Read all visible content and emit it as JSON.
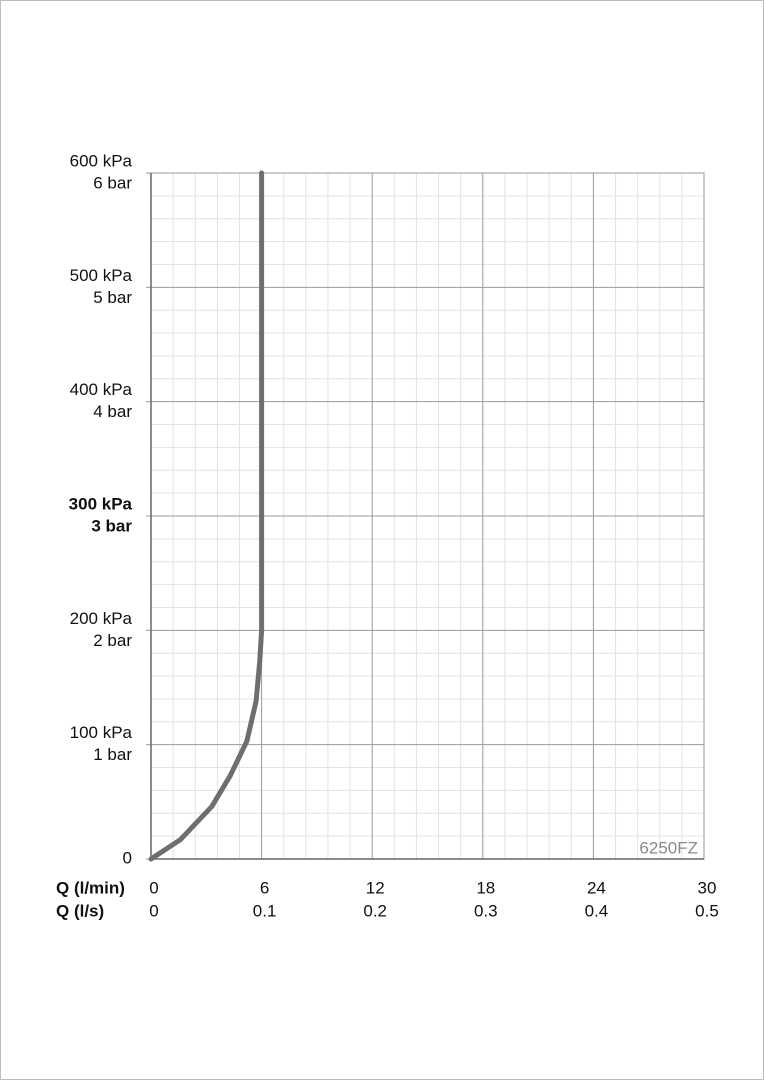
{
  "chart_data": {
    "type": "line",
    "x_label": "Q (l/min)",
    "x2_label": "Q (l/s)",
    "annotation": "6250FZ",
    "xlim": [
      0,
      30
    ],
    "xticks": [
      0,
      6,
      12,
      18,
      24,
      30
    ],
    "x2lim": [
      0,
      0.5
    ],
    "x2ticks": [
      0,
      0.1,
      0.2,
      0.3,
      0.4,
      0.5
    ],
    "ylim": [
      0,
      600
    ],
    "yticks": [
      0,
      {
        "value": 100,
        "label": "100 kPa"
      },
      {
        "value": 200,
        "label": "200 kPa"
      },
      {
        "value": 300,
        "label": "300 kPa"
      },
      {
        "value": 400,
        "label": "400 kPa"
      },
      {
        "value": 500,
        "label": "500 kPa"
      },
      {
        "value": 600,
        "label": "600 kPa"
      }
    ],
    "y2lim": [
      0,
      6
    ],
    "y2ticks": [
      {
        "value": 1,
        "label": "1 bar"
      },
      {
        "value": 2,
        "label": "2 bar"
      },
      {
        "value": 3,
        "label": "3 bar"
      },
      {
        "value": 4,
        "label": "4 bar"
      },
      {
        "value": 5,
        "label": "5 bar"
      },
      {
        "value": 6,
        "label": "6 bar"
      }
    ],
    "bold_ytick": 300,
    "grid": true,
    "minor_divisions": 5,
    "series": [
      {
        "color": "#6e6e6e",
        "x": [
          0,
          1.6,
          3.3,
          4.3,
          5.2,
          5.7,
          5.9,
          6.0,
          6.0
        ],
        "values": [
          0,
          17,
          46,
          73,
          103,
          138,
          173,
          200,
          600
        ]
      }
    ]
  }
}
